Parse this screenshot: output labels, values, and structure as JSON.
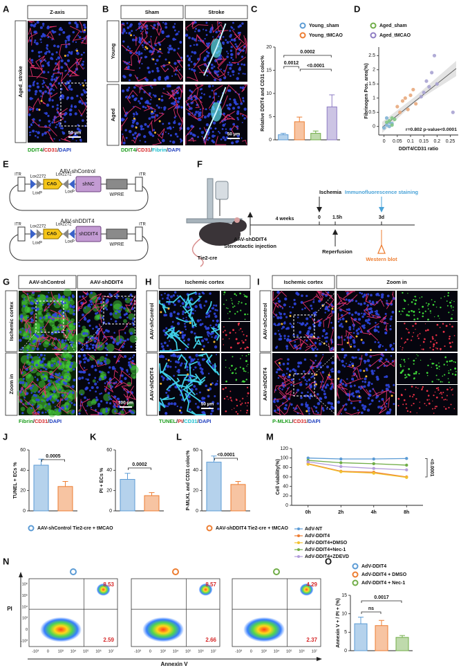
{
  "figure": {
    "letters": [
      "A",
      "B",
      "C",
      "D",
      "E",
      "F",
      "G",
      "H",
      "I",
      "J",
      "K",
      "L",
      "M",
      "N",
      "O"
    ],
    "A": {
      "header": "Z-axis",
      "row": "Aged_stroke",
      "scale": "50 µm",
      "caption": [
        {
          "text": "DDIT4",
          "color": "#1e9e1e"
        },
        {
          "text": "/",
          "color": "#222222"
        },
        {
          "text": "CD31",
          "color": "#d62728"
        },
        {
          "text": "/",
          "color": "#222222"
        },
        {
          "text": "DAPI",
          "color": "#1f3fbf"
        }
      ]
    },
    "B": {
      "headers": [
        "Sham",
        "Stroke"
      ],
      "rows": [
        "Young",
        "Aged"
      ],
      "scale": "50 µm",
      "caption": [
        {
          "text": "DDIT4",
          "color": "#1e9e1e"
        },
        {
          "text": "/",
          "color": "#222222"
        },
        {
          "text": "CD31",
          "color": "#d62728"
        },
        {
          "text": "/",
          "color": "#222222"
        },
        {
          "text": "Fibrin",
          "color": "#17becf"
        },
        {
          "text": "/",
          "color": "#222222"
        },
        {
          "text": "DAPI",
          "color": "#1f3fbf"
        }
      ]
    },
    "E": {
      "constructs": [
        {
          "title": "AAV-shControl",
          "insert": "shNC"
        },
        {
          "title": "AAV-shDDIT4",
          "insert": "shDDIT4"
        }
      ],
      "itr": "ITR",
      "lox2272": "Lox2272",
      "loxp": "LoxP",
      "promoter": "CAG",
      "wpre": "WPRE"
    },
    "F": {
      "injection": "AAV-shDDIT4",
      "injection_note": "Stereotactic injection",
      "mouse": "Tie2-cre",
      "interval": "4 weeks",
      "times": [
        "0",
        "1.5h",
        "3d"
      ],
      "ischemia": "Ischemia",
      "staining": "Immunofluorescence staining",
      "reperfusion": "Reperfusion",
      "blot": "Western blot"
    },
    "G": {
      "headers": [
        "AAV-shControl",
        "AAV-shDDIT4"
      ],
      "rows": [
        "Ischemic cortex",
        "Zoom in"
      ],
      "scale": "100 µm",
      "caption": [
        {
          "text": "Fibrin",
          "color": "#1e9e1e"
        },
        {
          "text": "/",
          "color": "#222222"
        },
        {
          "text": "CD31",
          "color": "#d62728"
        },
        {
          "text": "/",
          "color": "#222222"
        },
        {
          "text": "DAPI",
          "color": "#1f3fbf"
        }
      ]
    },
    "H": {
      "header": "Ischemic cortex",
      "rows": [
        "AAV-shControl",
        "AAV-shDDIT4"
      ],
      "scale": "50 µm",
      "caption": [
        {
          "text": "TUNEL",
          "color": "#1e9e1e"
        },
        {
          "text": "/",
          "color": "#222222"
        },
        {
          "text": "PI",
          "color": "#d62728"
        },
        {
          "text": "/",
          "color": "#222222"
        },
        {
          "text": "CD31",
          "color": "#17becf"
        },
        {
          "text": "/",
          "color": "#222222"
        },
        {
          "text": "DAPI",
          "color": "#1f3fbf"
        }
      ]
    },
    "I": {
      "headers": [
        "Ischemic cortex",
        "Zoom in"
      ],
      "rows": [
        "AAV-shControl",
        "AAV-shDDIT4"
      ],
      "caption": [
        {
          "text": "P-MLKL",
          "color": "#1e9e1e"
        },
        {
          "text": "/",
          "color": "#222222"
        },
        {
          "text": "CD31",
          "color": "#d62728"
        },
        {
          "text": "/",
          "color": "#222222"
        },
        {
          "text": "DAPI",
          "color": "#1f3fbf"
        }
      ]
    },
    "N": {
      "ylabel": "PI",
      "xlabel": "Annexin V",
      "yticks": [
        "10⁶",
        "10⁵",
        "10⁴",
        "10³",
        "0",
        "-10³"
      ],
      "xticks": [
        "-10³",
        "0",
        "10³",
        "10⁴",
        "10⁵",
        "10⁶",
        "10⁷"
      ],
      "plots": [
        {
          "color": "#5b9bd5",
          "upper": 8.53,
          "lower": 2.59
        },
        {
          "color": "#ed7d31",
          "upper": 8.57,
          "lower": 2.66
        },
        {
          "color": "#70ad47",
          "upper": 4.29,
          "lower": 2.37
        }
      ]
    }
  },
  "chart_data": [
    {
      "type": "bar",
      "ylabel": "Relative DDIT4 and CD31 coloc%",
      "categories": [
        null,
        null,
        null,
        null
      ],
      "values": [
        1.1,
        3.9,
        1.4,
        7.1
      ],
      "errors": [
        0.3,
        1.0,
        0.5,
        2.6
      ],
      "colors": [
        "#5b9bd5",
        "#ed7d31",
        "#70ad47",
        "#8e7cc3"
      ],
      "ylim": [
        0,
        20
      ],
      "yticks": [
        0,
        5,
        10,
        15,
        20
      ],
      "legend": [
        {
          "name": "Young_sham",
          "color": "#5b9bd5"
        },
        {
          "name": "Aged_sham",
          "color": "#70ad47"
        },
        {
          "name": "Young_tMCAO",
          "color": "#ed7d31"
        },
        {
          "name": "Aged_tMCAO",
          "color": "#8e7cc3"
        }
      ],
      "brackets": [
        {
          "label": "0.0012",
          "from": 0,
          "to": 1
        },
        {
          "label": "<0.0001",
          "from": 1,
          "to": 3
        },
        {
          "label": "0.0002",
          "from": 0,
          "to": 3
        }
      ]
    },
    {
      "type": "scatter",
      "xlabel": "DDIT4/CD31 ratio",
      "ylabel": "Fibrinogen Pos. area(%)",
      "annotation": "r=0.802 p-value<0.0001",
      "xlim": [
        -0.02,
        0.28
      ],
      "xticks": [
        0,
        0.05,
        0.1,
        0.15,
        0.2,
        0.25
      ],
      "ylim": [
        -0.3,
        2.8
      ],
      "yticks": [
        0,
        0.5,
        1,
        1.5,
        2,
        2.5
      ],
      "series": [
        {
          "color": "#7fb3d5",
          "x": [
            0.01,
            0.02,
            0.0,
            0.03,
            0.01,
            0.02
          ],
          "y": [
            0.05,
            0.15,
            -0.05,
            0.1,
            0.3,
            0.0
          ]
        },
        {
          "color": "#82c785",
          "x": [
            0.02,
            0.03,
            0.04,
            0.01,
            0.03
          ],
          "y": [
            0.2,
            0.05,
            0.25,
            0.15,
            0.3
          ]
        },
        {
          "color": "#e8a87c",
          "x": [
            0.05,
            0.07,
            0.09,
            0.1,
            0.12,
            0.08,
            0.06,
            0.11
          ],
          "y": [
            0.7,
            0.9,
            0.6,
            1.1,
            0.8,
            1.0,
            0.5,
            1.3
          ]
        },
        {
          "color": "#a9a3d1",
          "x": [
            0.15,
            0.16,
            0.17,
            0.19,
            0.2,
            0.26,
            0.14,
            0.18
          ],
          "y": [
            1.2,
            1.6,
            1.4,
            2.5,
            1.5,
            0.5,
            1.05,
            1.9
          ]
        }
      ]
    },
    {
      "type": "bar",
      "ylabel": "TUNEL + ECs %",
      "categories": [
        null,
        null
      ],
      "values": [
        45,
        24
      ],
      "errors": [
        6,
        5
      ],
      "colors": [
        "#5b9bd5",
        "#ed7d31"
      ],
      "ylim": [
        0,
        60
      ],
      "yticks": [
        0,
        20,
        40,
        60
      ],
      "legend": [
        {
          "name": "AAV-shControl Tie2-cre + tMCAO",
          "color": "#5b9bd5"
        },
        {
          "name": "AAV-shDDIT4 Tie2-cre + tMCAO",
          "color": "#ed7d31"
        }
      ],
      "brackets": [
        {
          "label": "0.0005",
          "from": 0,
          "to": 1
        }
      ]
    },
    {
      "type": "bar",
      "ylabel": "PI + ECs %",
      "categories": [
        null,
        null
      ],
      "values": [
        31,
        15
      ],
      "errors": [
        6,
        3
      ],
      "colors": [
        "#5b9bd5",
        "#ed7d31"
      ],
      "ylim": [
        0,
        60
      ],
      "yticks": [
        0,
        20,
        40,
        60
      ],
      "brackets": [
        {
          "label": "0.0002",
          "from": 0,
          "to": 1
        }
      ]
    },
    {
      "type": "bar",
      "ylabel": "P-MLKL and CD31 coloc%",
      "categories": [
        null,
        null
      ],
      "values": [
        48,
        26
      ],
      "errors": [
        6,
        3
      ],
      "colors": [
        "#5b9bd5",
        "#ed7d31"
      ],
      "ylim": [
        0,
        60
      ],
      "yticks": [
        0,
        20,
        40,
        60
      ],
      "brackets": [
        {
          "label": "<0.0001",
          "from": 0,
          "to": 1
        }
      ]
    },
    {
      "type": "line",
      "ylabel": "Cell viability(%)",
      "categories": [
        "0h",
        "2h",
        "4h",
        "8h"
      ],
      "ylim": [
        0,
        120
      ],
      "yticks": [
        0,
        20,
        40,
        60,
        80,
        100,
        120
      ],
      "annotation": "<0.0001",
      "series": [
        {
          "name": "AdV-NT",
          "color": "#5b9bd5",
          "values": [
            100,
            98,
            98,
            99
          ]
        },
        {
          "name": "AdV-DDIT4",
          "color": "#ed7d31",
          "values": [
            88,
            72,
            70,
            60
          ]
        },
        {
          "name": "AdV-DDIT4+DMSO",
          "color": "#f2c12e",
          "values": [
            87,
            71,
            68,
            59
          ]
        },
        {
          "name": "AdV-DDIT4+Nec-1",
          "color": "#70ad47",
          "values": [
            95,
            90,
            88,
            85
          ]
        },
        {
          "name": "AdV-DDIT4+ZDEVD",
          "color": "#b39ddb",
          "values": [
            92,
            82,
            78,
            75
          ]
        }
      ]
    },
    {
      "type": "bar",
      "ylabel": "Annexin V + / PI + (%)",
      "categories": [
        null,
        null,
        null
      ],
      "values": [
        7.3,
        6.8,
        3.6
      ],
      "errors": [
        1.8,
        1.4,
        0.5
      ],
      "colors": [
        "#5b9bd5",
        "#ed7d31",
        "#70ad47"
      ],
      "ylim": [
        0,
        15
      ],
      "yticks": [
        0,
        5,
        10,
        15
      ],
      "legend": [
        {
          "name": "AdV-DDIT4",
          "color": "#5b9bd5"
        },
        {
          "name": "AdV-DDIT4 + DMSO",
          "color": "#ed7d31"
        },
        {
          "name": "AdV-DDIT4 + Nec-1",
          "color": "#70ad47"
        }
      ],
      "brackets": [
        {
          "label": "ns",
          "from": 0,
          "to": 1
        },
        {
          "label": "0.0017",
          "from": 0,
          "to": 2
        }
      ]
    }
  ]
}
